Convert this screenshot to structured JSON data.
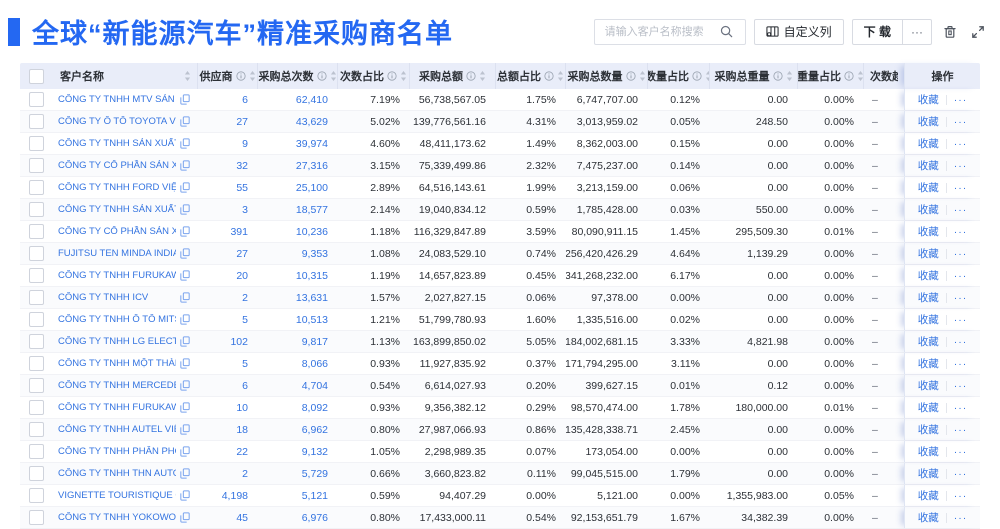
{
  "title": "全球“新能源汽车”精准采购商名单",
  "toolbar": {
    "search_placeholder": "请输入客户名称搜索",
    "customize_columns": "自定义列",
    "download": "下 载",
    "more": "···"
  },
  "table": {
    "columns": [
      {
        "key": "check",
        "label": "",
        "info": false,
        "sortable": false
      },
      {
        "key": "name",
        "label": "客户名称",
        "info": false,
        "sortable": true
      },
      {
        "key": "supplier",
        "label": "供应商",
        "info": true,
        "sortable": true
      },
      {
        "key": "times",
        "label": "采购总次数",
        "info": true,
        "sortable": true
      },
      {
        "key": "times_pct",
        "label": "次数占比",
        "info": true,
        "sortable": true
      },
      {
        "key": "amount",
        "label": "采购总额",
        "info": true,
        "sortable": true
      },
      {
        "key": "amount_pct",
        "label": "总额占比",
        "info": true,
        "sortable": true
      },
      {
        "key": "qty",
        "label": "采购总数量",
        "info": true,
        "sortable": true
      },
      {
        "key": "qty_pct",
        "label": "数量占比",
        "info": true,
        "sortable": true
      },
      {
        "key": "weight",
        "label": "采购总重量",
        "info": true,
        "sortable": true
      },
      {
        "key": "weight_pct",
        "label": "重量占比",
        "info": true,
        "sortable": true
      },
      {
        "key": "trend",
        "label": "次数趋势",
        "info": false,
        "sortable": false
      },
      {
        "key": "ops",
        "label": "操作",
        "info": false,
        "sortable": false
      }
    ],
    "actions": {
      "favorite": "收藏",
      "more": "···"
    },
    "rows": [
      {
        "name": "CÔNG TY TNHH MTV SẢN XUẤ...",
        "supplier": "6",
        "times": "62,410",
        "times_pct": "7.19%",
        "amount": "56,738,567.05",
        "amount_pct": "1.75%",
        "qty": "6,747,707.00",
        "qty_pct": "0.12%",
        "weight": "0.00",
        "weight_pct": "0.00%",
        "trend": "–"
      },
      {
        "name": "CÔNG TY Ô TÔ TOYOTA VIỆT ...",
        "supplier": "27",
        "times": "43,629",
        "times_pct": "5.02%",
        "amount": "139,776,561.16",
        "amount_pct": "4.31%",
        "qty": "3,013,959.02",
        "qty_pct": "0.05%",
        "weight": "248.50",
        "weight_pct": "0.00%",
        "trend": "–"
      },
      {
        "name": "CÔNG TY TNHH SẢN XUẤT VÀ ...",
        "supplier": "9",
        "times": "39,974",
        "times_pct": "4.60%",
        "amount": "48,411,173.62",
        "amount_pct": "1.49%",
        "qty": "8,362,003.00",
        "qty_pct": "0.15%",
        "weight": "0.00",
        "weight_pct": "0.00%",
        "trend": "–"
      },
      {
        "name": "CÔNG TY CỔ PHẦN SẢN XUẤT...",
        "supplier": "32",
        "times": "27,316",
        "times_pct": "3.15%",
        "amount": "75,339,499.86",
        "amount_pct": "2.32%",
        "qty": "7,475,237.00",
        "qty_pct": "0.14%",
        "weight": "0.00",
        "weight_pct": "0.00%",
        "trend": "–"
      },
      {
        "name": "CÔNG TY TNHH FORD VIỆT NAM",
        "supplier": "55",
        "times": "25,100",
        "times_pct": "2.89%",
        "amount": "64,516,143.61",
        "amount_pct": "1.99%",
        "qty": "3,213,159.00",
        "qty_pct": "0.06%",
        "weight": "0.00",
        "weight_pct": "0.00%",
        "trend": "–"
      },
      {
        "name": "CÔNG TY TNHH SẢN XUẤT VÀ ...",
        "supplier": "3",
        "times": "18,577",
        "times_pct": "2.14%",
        "amount": "19,040,834.12",
        "amount_pct": "0.59%",
        "qty": "1,785,428.00",
        "qty_pct": "0.03%",
        "weight": "550.00",
        "weight_pct": "0.00%",
        "trend": "–"
      },
      {
        "name": "CÔNG TY CỔ PHẦN SẢN XUẤT...",
        "supplier": "391",
        "times": "10,236",
        "times_pct": "1.18%",
        "amount": "116,329,847.89",
        "amount_pct": "3.59%",
        "qty": "80,090,911.15",
        "qty_pct": "1.45%",
        "weight": "295,509.30",
        "weight_pct": "0.01%",
        "trend": "–"
      },
      {
        "name": "FUJITSU TEN MINDA INDIA PVT...",
        "supplier": "27",
        "times": "9,353",
        "times_pct": "1.08%",
        "amount": "24,083,529.10",
        "amount_pct": "0.74%",
        "qty": "256,420,426.29",
        "qty_pct": "4.64%",
        "weight": "1,139.29",
        "weight_pct": "0.00%",
        "trend": "–"
      },
      {
        "name": "CÔNG TY TNHH FURUKAWA A...",
        "supplier": "20",
        "times": "10,315",
        "times_pct": "1.19%",
        "amount": "14,657,823.89",
        "amount_pct": "0.45%",
        "qty": "341,268,232.00",
        "qty_pct": "6.17%",
        "weight": "0.00",
        "weight_pct": "0.00%",
        "trend": "–"
      },
      {
        "name": "CÔNG TY TNHH ICV",
        "supplier": "2",
        "times": "13,631",
        "times_pct": "1.57%",
        "amount": "2,027,827.15",
        "amount_pct": "0.06%",
        "qty": "97,378.00",
        "qty_pct": "0.00%",
        "weight": "0.00",
        "weight_pct": "0.00%",
        "trend": "–"
      },
      {
        "name": "CÔNG TY TNHH Ô TÔ MITSUBI...",
        "supplier": "5",
        "times": "10,513",
        "times_pct": "1.21%",
        "amount": "51,799,780.93",
        "amount_pct": "1.60%",
        "qty": "1,335,516.00",
        "qty_pct": "0.02%",
        "weight": "0.00",
        "weight_pct": "0.00%",
        "trend": "–"
      },
      {
        "name": "CÔNG TY TNHH LG ELECTRON...",
        "supplier": "102",
        "times": "9,817",
        "times_pct": "1.13%",
        "amount": "163,899,850.02",
        "amount_pct": "5.05%",
        "qty": "184,002,681.15",
        "qty_pct": "3.33%",
        "weight": "4,821.98",
        "weight_pct": "0.00%",
        "trend": "–"
      },
      {
        "name": "CÔNG TY TNHH MỘT THÀNH V...",
        "supplier": "5",
        "times": "8,066",
        "times_pct": "0.93%",
        "amount": "11,927,835.92",
        "amount_pct": "0.37%",
        "qty": "171,794,295.00",
        "qty_pct": "3.11%",
        "weight": "0.00",
        "weight_pct": "0.00%",
        "trend": "–"
      },
      {
        "name": "CÔNG TY TNHH MERCEDES–B...",
        "supplier": "6",
        "times": "4,704",
        "times_pct": "0.54%",
        "amount": "6,614,027.93",
        "amount_pct": "0.20%",
        "qty": "399,627.15",
        "qty_pct": "0.01%",
        "weight": "0.12",
        "weight_pct": "0.00%",
        "trend": "–"
      },
      {
        "name": "CÔNG TY TNHH FURUKAWA A...",
        "supplier": "10",
        "times": "8,092",
        "times_pct": "0.93%",
        "amount": "9,356,382.12",
        "amount_pct": "0.29%",
        "qty": "98,570,474.00",
        "qty_pct": "1.78%",
        "weight": "180,000.00",
        "weight_pct": "0.01%",
        "trend": "–"
      },
      {
        "name": "CÔNG TY TNHH AUTEL VIỆT N...",
        "supplier": "18",
        "times": "6,962",
        "times_pct": "0.80%",
        "amount": "27,987,066.93",
        "amount_pct": "0.86%",
        "qty": "135,428,338.71",
        "qty_pct": "2.45%",
        "weight": "0.00",
        "weight_pct": "0.00%",
        "trend": "–"
      },
      {
        "name": "CÔNG TY TNHH PHÂN PHỐI T...",
        "supplier": "22",
        "times": "9,132",
        "times_pct": "1.05%",
        "amount": "2,298,989.35",
        "amount_pct": "0.07%",
        "qty": "173,054.00",
        "qty_pct": "0.00%",
        "weight": "0.00",
        "weight_pct": "0.00%",
        "trend": "–"
      },
      {
        "name": "CÔNG TY TNHH THN AUTOPAR...",
        "supplier": "2",
        "times": "5,729",
        "times_pct": "0.66%",
        "amount": "3,660,823.82",
        "amount_pct": "0.11%",
        "qty": "99,045,515.00",
        "qty_pct": "1.79%",
        "weight": "0.00",
        "weight_pct": "0.00%",
        "trend": "–"
      },
      {
        "name": "VIGNETTE TOURISTIQUE G UNI...",
        "supplier": "4,198",
        "times": "5,121",
        "times_pct": "0.59%",
        "amount": "94,407.29",
        "amount_pct": "0.00%",
        "qty": "5,121.00",
        "qty_pct": "0.00%",
        "weight": "1,355,983.00",
        "weight_pct": "0.05%",
        "trend": "–"
      },
      {
        "name": "CÔNG TY TNHH YOKOWO VIỆT...",
        "supplier": "45",
        "times": "6,976",
        "times_pct": "0.80%",
        "amount": "17,433,000.11",
        "amount_pct": "0.54%",
        "qty": "92,153,651.79",
        "qty_pct": "1.67%",
        "weight": "34,382.39",
        "weight_pct": "0.00%",
        "trend": "–"
      }
    ]
  }
}
